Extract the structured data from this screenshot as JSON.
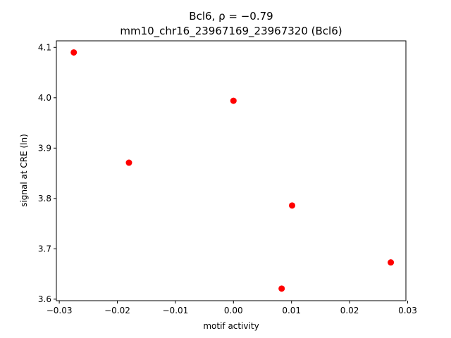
{
  "chart_data": {
    "type": "scatter",
    "title_lines": [
      "Bcl6, ρ = −0.79",
      "mm10_chr16_23967169_23967320 (Bcl6)"
    ],
    "xlabel": "motif activity",
    "ylabel": "signal at CRE (ln)",
    "xlim": [
      -0.0305,
      0.0297
    ],
    "ylim": [
      3.597,
      4.113
    ],
    "xticks": [
      -0.03,
      -0.02,
      -0.01,
      0.0,
      0.01,
      0.02,
      0.03
    ],
    "xtick_labels": [
      "−0.03",
      "−0.02",
      "−0.01",
      "0.00",
      "0.01",
      "0.02",
      "0.03"
    ],
    "yticks": [
      3.6,
      3.7,
      3.8,
      3.9,
      4.0,
      4.1
    ],
    "ytick_labels": [
      "3.6",
      "3.7",
      "3.8",
      "3.9",
      "4.0",
      "4.1"
    ],
    "grid": false,
    "marker_color": "#ff0000",
    "points": [
      {
        "x": -0.0275,
        "y": 4.09
      },
      {
        "x": -0.018,
        "y": 3.871
      },
      {
        "x": 0.0,
        "y": 3.994
      },
      {
        "x": 0.0083,
        "y": 3.621
      },
      {
        "x": 0.0101,
        "y": 3.786
      },
      {
        "x": 0.0271,
        "y": 3.673
      }
    ]
  }
}
